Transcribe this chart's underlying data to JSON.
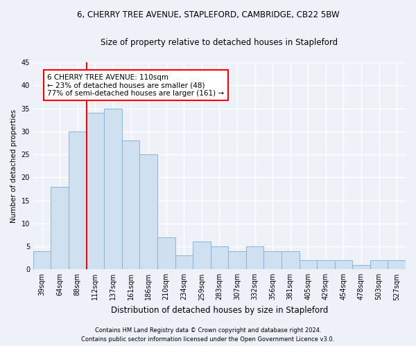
{
  "title1": "6, CHERRY TREE AVENUE, STAPLEFORD, CAMBRIDGE, CB22 5BW",
  "title2": "Size of property relative to detached houses in Stapleford",
  "xlabel": "Distribution of detached houses by size in Stapleford",
  "ylabel": "Number of detached properties",
  "categories": [
    "39sqm",
    "64sqm",
    "88sqm",
    "112sqm",
    "137sqm",
    "161sqm",
    "186sqm",
    "210sqm",
    "234sqm",
    "259sqm",
    "283sqm",
    "307sqm",
    "332sqm",
    "356sqm",
    "381sqm",
    "405sqm",
    "429sqm",
    "454sqm",
    "478sqm",
    "503sqm",
    "527sqm"
  ],
  "values": [
    4,
    18,
    30,
    34,
    35,
    28,
    25,
    7,
    3,
    6,
    5,
    4,
    5,
    4,
    4,
    2,
    2,
    2,
    1,
    2,
    2
  ],
  "bar_color": "#cfe0f0",
  "bar_edge_color": "#8ab4d4",
  "vline_index": 3,
  "vline_color": "red",
  "annotation_text": "6 CHERRY TREE AVENUE: 110sqm\n← 23% of detached houses are smaller (48)\n77% of semi-detached houses are larger (161) →",
  "annotation_box_color": "white",
  "annotation_box_edge": "red",
  "ylim": [
    0,
    45
  ],
  "yticks": [
    0,
    5,
    10,
    15,
    20,
    25,
    30,
    35,
    40,
    45
  ],
  "footer1": "Contains HM Land Registry data © Crown copyright and database right 2024.",
  "footer2": "Contains public sector information licensed under the Open Government Licence v3.0.",
  "bg_color": "#eef2f8",
  "grid_color": "#ffffff",
  "title1_fontsize": 8.5,
  "title2_fontsize": 8.5,
  "xlabel_fontsize": 8.5,
  "ylabel_fontsize": 7.5,
  "tick_fontsize": 7,
  "annotation_fontsize": 7.5,
  "footer_fontsize": 6
}
